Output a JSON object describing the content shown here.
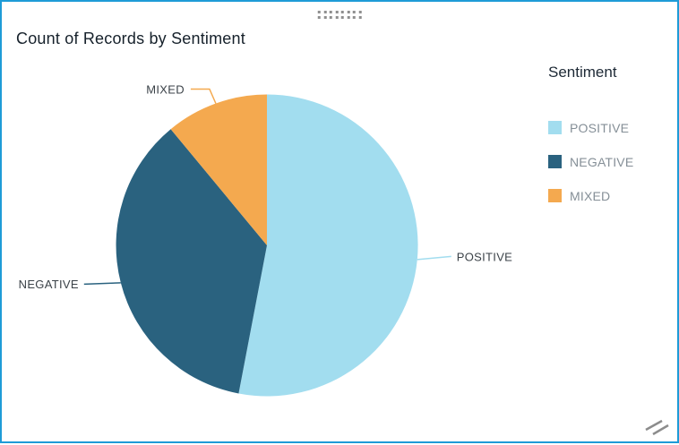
{
  "widget": {
    "title": "Count of Records by Sentiment",
    "accent_border_color": "#1e9bd7"
  },
  "legend": {
    "title": "Sentiment",
    "items": [
      {
        "label": "POSITIVE",
        "color": "#a2ddef"
      },
      {
        "label": "NEGATIVE",
        "color": "#2a627f"
      },
      {
        "label": "MIXED",
        "color": "#f4a94f"
      }
    ]
  },
  "chart_data": {
    "type": "pie",
    "title": "Count of Records by Sentiment",
    "categories": [
      "POSITIVE",
      "NEGATIVE",
      "MIXED"
    ],
    "values": [
      53,
      36,
      11
    ],
    "angles_deg": [
      190.8,
      129.6,
      39.6
    ],
    "colors": [
      "#a2ddef",
      "#2a627f",
      "#f4a94f"
    ],
    "start_angle_deg": 0,
    "direction": "clockwise",
    "legend_title": "Sentiment",
    "legend_position": "right",
    "slice_labels_outside": true,
    "data_labels_shown": false
  }
}
